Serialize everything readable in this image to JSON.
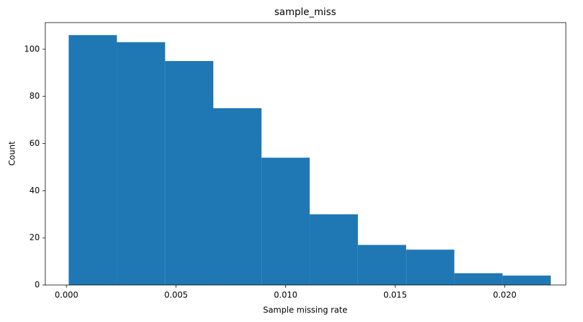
{
  "chart_data": {
    "type": "histogram",
    "title": "sample_miss",
    "x_label": "Sample missing rate",
    "y_label": "Count",
    "bins": [
      0.0001,
      0.0023,
      0.0045,
      0.0067,
      0.0089,
      0.0111,
      0.0133,
      0.0155,
      0.0177,
      0.0199,
      0.0221
    ],
    "values": [
      106,
      103,
      95,
      75,
      54,
      30,
      17,
      15,
      5,
      4
    ],
    "color": "#1f77b4",
    "xlim": [
      -0.00097,
      0.02279
    ],
    "xticks": [
      {
        "value": 0,
        "label": "0.000"
      },
      {
        "value": 0.005,
        "label": "0.005"
      },
      {
        "value": 0.01,
        "label": "0.010"
      },
      {
        "value": 0.015,
        "label": "0.015"
      },
      {
        "value": 0.02,
        "label": "0.020"
      }
    ],
    "ylim": [
      0,
      111.3
    ],
    "yticks": [
      0,
      20,
      40,
      60,
      80,
      100
    ],
    "grid": false
  }
}
